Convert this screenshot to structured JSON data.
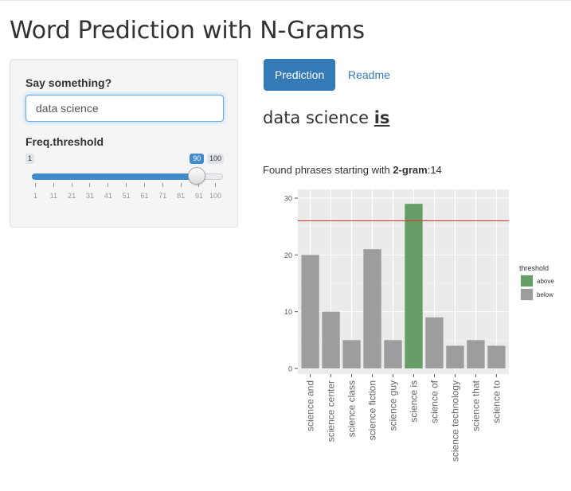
{
  "page": {
    "title": "Word Prediction with N-Grams"
  },
  "sidebar": {
    "input_label": "Say something?",
    "input_value": "data science",
    "slider_label": "Freq.threshold",
    "slider": {
      "min": 1,
      "max": 100,
      "value": 90,
      "min_label": "1",
      "max_label": "100",
      "value_label": "90",
      "ticks": [
        "1",
        "11",
        "21",
        "31",
        "41",
        "51",
        "61",
        "71",
        "81",
        "91",
        "100"
      ]
    }
  },
  "tabs": [
    {
      "label": "Prediction",
      "active": true
    },
    {
      "label": "Readme",
      "active": false
    }
  ],
  "prediction": {
    "prefix": "data science",
    "word": "is"
  },
  "found": {
    "prefix": "Found phrases starting with",
    "ngram": "2-gram",
    "sep": ":",
    "count": "14"
  },
  "chart_data": {
    "type": "bar",
    "categories": [
      "science and",
      "science center",
      "science class",
      "science fiction",
      "science guy",
      "science is",
      "science of",
      "science technology",
      "science that",
      "science to"
    ],
    "values": [
      20,
      10,
      5,
      21,
      5,
      29,
      9,
      4,
      5,
      4
    ],
    "groups": [
      "below",
      "below",
      "below",
      "below",
      "below",
      "above",
      "below",
      "below",
      "below",
      "below"
    ],
    "threshold_line": 26,
    "ylim": [
      0,
      30
    ],
    "yticks": [
      "0",
      "10",
      "20",
      "30"
    ],
    "legend": {
      "title": "threshold",
      "entries": [
        "above",
        "below"
      ],
      "placement": "right"
    },
    "colors": {
      "above": "#669e65",
      "below": "#9d9c9f",
      "line": "#e0302a",
      "panel": "#ebebeb",
      "grid": "#ffffff"
    }
  }
}
